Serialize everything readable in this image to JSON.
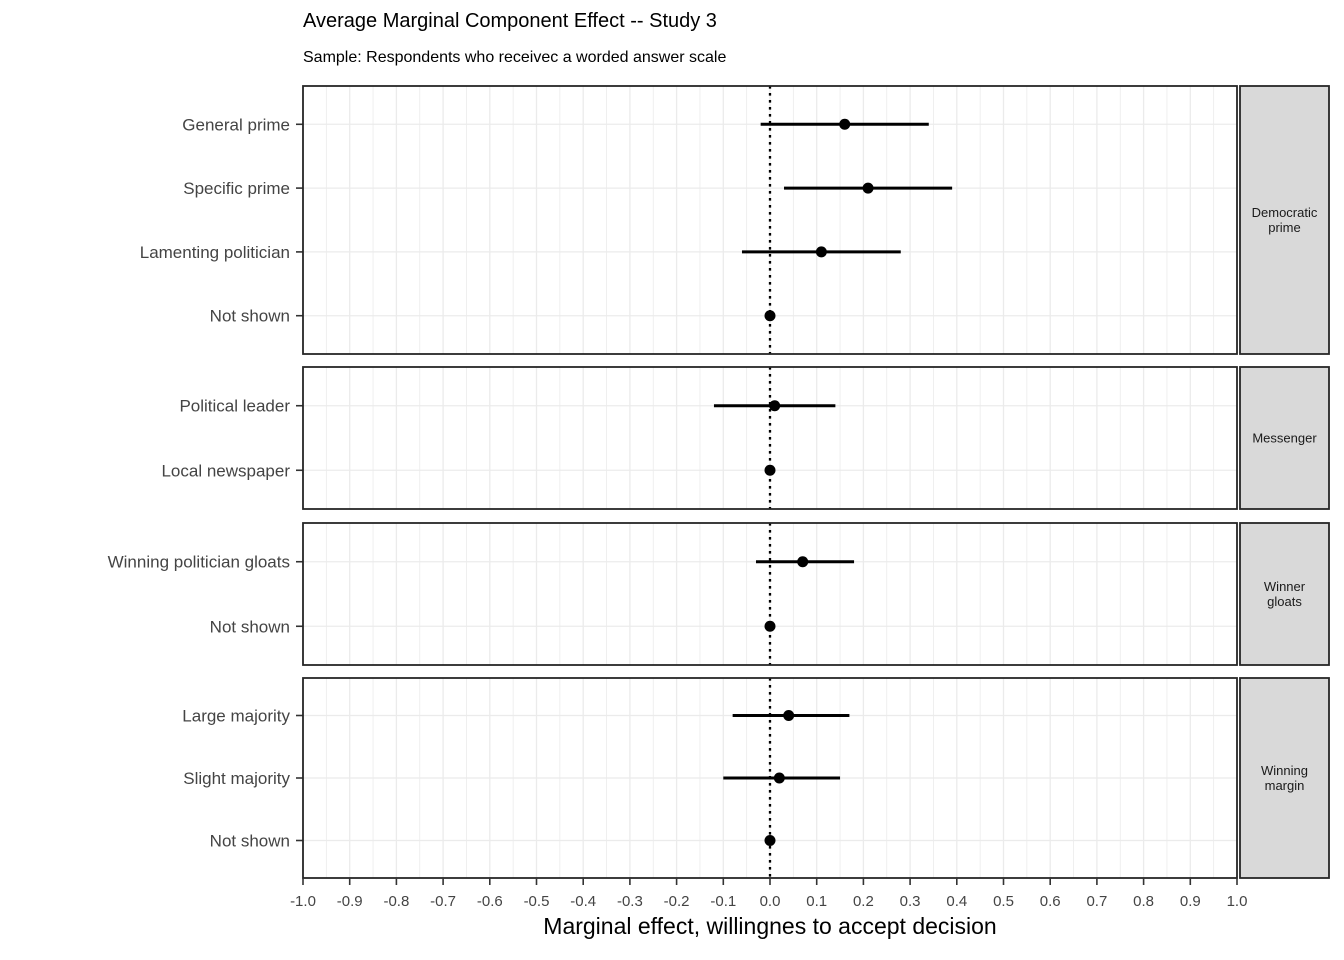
{
  "chart_data": {
    "type": "scatter",
    "subtype": "dot-whisker coefficient plot with error bars, faceted rows",
    "title": "Average Marginal Component Effect -- Study 3",
    "subtitle": "Sample: Respondents who receivec a worded answer scale",
    "xlabel": "Marginal effect, willingnes to accept decision",
    "ylabel": "",
    "axis": {
      "xlim": [
        -1.0,
        1.0
      ],
      "tick_values": [
        -1.0,
        -0.9,
        -0.8,
        -0.7,
        -0.6,
        -0.5,
        -0.4,
        -0.3,
        -0.2,
        -0.1,
        0.0,
        0.1,
        0.2,
        0.3,
        0.4,
        0.5,
        0.6,
        0.7,
        0.8,
        0.9,
        1.0
      ],
      "tick_labels": [
        "-1.0",
        "-0.9",
        "-0.8",
        "-0.7",
        "-0.6",
        "-0.5",
        "-0.4",
        "-0.3",
        "-0.2",
        "-0.1",
        "0.0",
        "0.1",
        "0.2",
        "0.3",
        "0.4",
        "0.5",
        "0.6",
        "0.7",
        "0.8",
        "0.9",
        "1.0"
      ],
      "minor_grid_step": 0.05,
      "grid": true,
      "reference_line_x": 0.0,
      "reference_line_style": "dotted"
    },
    "panels": [
      {
        "strip_lines": [
          "Democratic",
          "prime"
        ],
        "rows": [
          {
            "label": "General prime",
            "est": 0.16,
            "lo": -0.02,
            "hi": 0.34,
            "reference": false
          },
          {
            "label": "Specific prime",
            "est": 0.21,
            "lo": 0.03,
            "hi": 0.39,
            "reference": false
          },
          {
            "label": "Lamenting politician",
            "est": 0.11,
            "lo": -0.06,
            "hi": 0.28,
            "reference": false
          },
          {
            "label": "Not shown",
            "est": 0.0,
            "lo": null,
            "hi": null,
            "reference": true
          }
        ]
      },
      {
        "strip_lines": [
          "Messenger"
        ],
        "rows": [
          {
            "label": "Political leader",
            "est": 0.01,
            "lo": -0.12,
            "hi": 0.14,
            "reference": false
          },
          {
            "label": "Local newspaper",
            "est": 0.0,
            "lo": null,
            "hi": null,
            "reference": true
          }
        ]
      },
      {
        "strip_lines": [
          "Winner",
          "gloats"
        ],
        "rows": [
          {
            "label": "Winning politician gloats",
            "est": 0.07,
            "lo": -0.03,
            "hi": 0.18,
            "reference": false
          },
          {
            "label": "Not shown",
            "est": 0.0,
            "lo": null,
            "hi": null,
            "reference": true
          }
        ]
      },
      {
        "strip_lines": [
          "Winning",
          "margin"
        ],
        "rows": [
          {
            "label": "Large majority",
            "est": 0.04,
            "lo": -0.08,
            "hi": 0.17,
            "reference": false
          },
          {
            "label": "Slight majority",
            "est": 0.02,
            "lo": -0.1,
            "hi": 0.15,
            "reference": false
          },
          {
            "label": "Not shown",
            "est": 0.0,
            "lo": null,
            "hi": null,
            "reference": true
          }
        ]
      }
    ],
    "colors": {
      "background": "#ffffff",
      "panel_border": "#262626",
      "grid": "#ebebeb",
      "strip_background": "#d9d9d9",
      "strip_border": "#262626",
      "axis_text": "#444444",
      "point": "#000000",
      "error_bar": "#000000",
      "reference_line": "#000000"
    },
    "legend": "none"
  }
}
